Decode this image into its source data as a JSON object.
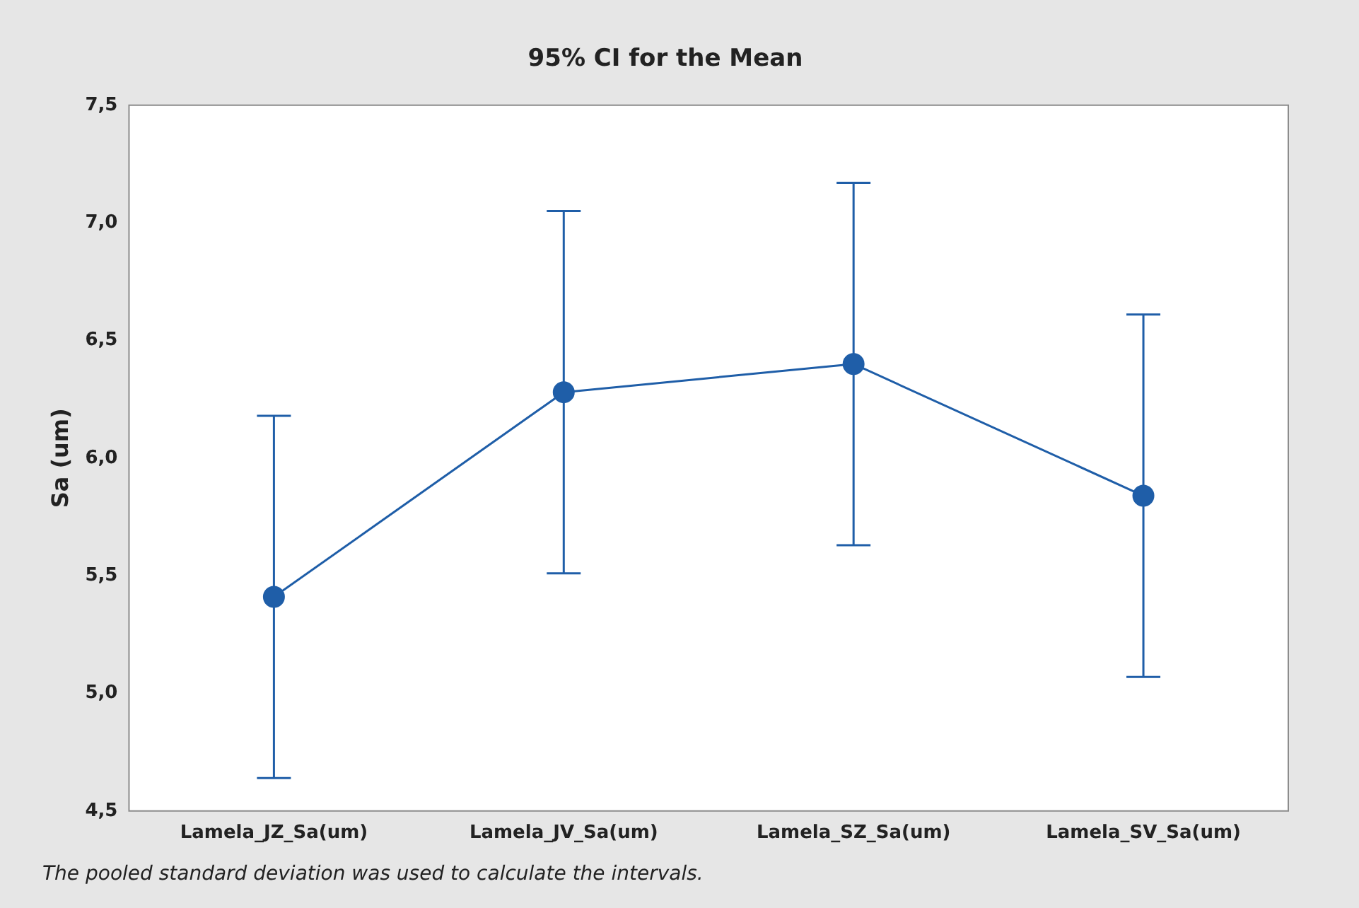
{
  "chart_data": {
    "type": "line",
    "title": "95% CI for the Mean",
    "ylabel": "Sa (um)",
    "categories": [
      "Lamela_JZ_Sa(um)",
      "Lamela_JV_Sa(um)",
      "Lamela_SZ_Sa(um)",
      "Lamela_SV_Sa(um)"
    ],
    "series": [
      {
        "color": "#1f5ea8",
        "values": [
          5.41,
          6.28,
          6.4,
          5.84
        ],
        "errors": [
          0.77,
          0.77,
          0.77,
          0.77
        ]
      }
    ],
    "ylim": [
      4.5,
      7.5
    ],
    "yticks": [
      {
        "value": 4.5,
        "label": "4,5"
      },
      {
        "value": 5.0,
        "label": "5,0"
      },
      {
        "value": 5.5,
        "label": "5,5"
      },
      {
        "value": 6.0,
        "label": "6,0"
      },
      {
        "value": 6.5,
        "label": "6,5"
      },
      {
        "value": 7.0,
        "label": "7,0"
      },
      {
        "value": 7.5,
        "label": "7,5"
      }
    ],
    "grid": false,
    "legend": false,
    "marker": "circle",
    "line_style": "solid",
    "annotations": [
      "The pooled standard deviation was used to calculate the intervals."
    ]
  }
}
